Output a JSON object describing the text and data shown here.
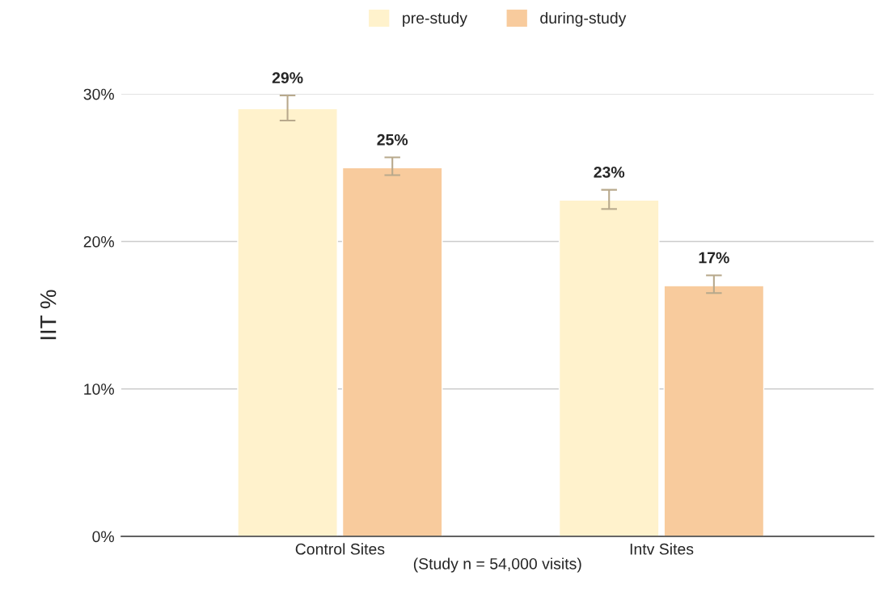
{
  "chart_data": {
    "type": "bar",
    "ylabel": "IIT %",
    "xlabel": "(Study n = 54,000 visits)",
    "categories": [
      "Control Sites",
      "Intv Sites"
    ],
    "series": [
      {
        "name": "pre-study",
        "color": "#fff2cc",
        "values": [
          29,
          22.8
        ],
        "errors": [
          [
            28.2,
            29.9
          ],
          [
            22.2,
            23.5
          ]
        ],
        "value_labels": [
          "29%",
          "23%"
        ]
      },
      {
        "name": "during-study",
        "color": "#f8cb9d",
        "values": [
          25,
          17
        ],
        "errors": [
          [
            24.5,
            25.7
          ],
          [
            16.5,
            17.7
          ]
        ],
        "value_labels": [
          "25%",
          "17%"
        ]
      }
    ],
    "yticks": [
      {
        "value": 0,
        "label": "0%"
      },
      {
        "value": 10,
        "label": "10%"
      },
      {
        "value": 20,
        "label": "20%"
      },
      {
        "value": 30,
        "label": "30%"
      }
    ],
    "ylim": [
      0,
      30
    ],
    "grid": "y",
    "legend": "top"
  }
}
